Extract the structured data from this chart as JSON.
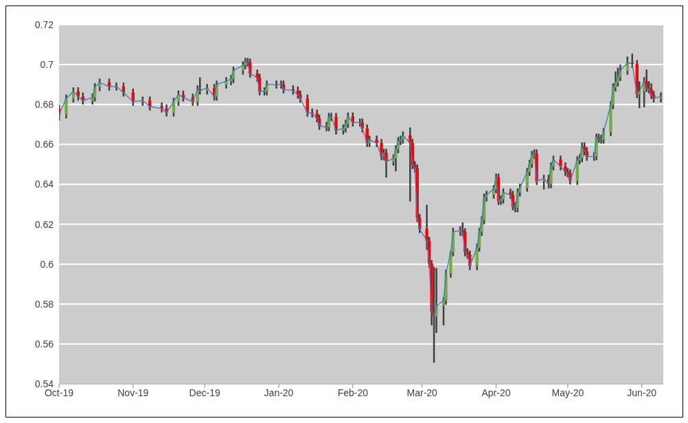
{
  "chart_data": {
    "type": "candlestick",
    "x": [
      "2019-10-01",
      "2019-10-04",
      "2019-10-07",
      "2019-10-09",
      "2019-10-11",
      "2019-10-15",
      "2019-10-16",
      "2019-10-18",
      "2019-10-22",
      "2019-10-25",
      "2019-10-28",
      "2019-11-01",
      "2019-11-05",
      "2019-11-08",
      "2019-11-13",
      "2019-11-15",
      "2019-11-18",
      "2019-11-20",
      "2019-11-22",
      "2019-11-26",
      "2019-11-28",
      "2019-11-29",
      "2019-12-02",
      "2019-12-05",
      "2019-12-06",
      "2019-12-10",
      "2019-12-12",
      "2019-12-13",
      "2019-12-17",
      "2019-12-18",
      "2019-12-19",
      "2019-12-20",
      "2019-12-23",
      "2019-12-24",
      "2019-12-26",
      "2019-12-27",
      "2019-12-31",
      "2020-01-02",
      "2020-01-03",
      "2020-01-07",
      "2020-01-09",
      "2020-01-10",
      "2020-01-13",
      "2020-01-15",
      "2020-01-17",
      "2020-01-18",
      "2020-01-21",
      "2020-01-22",
      "2020-01-23",
      "2020-01-25",
      "2020-01-28",
      "2020-01-29",
      "2020-01-30",
      "2020-02-01",
      "2020-02-04",
      "2020-02-05",
      "2020-02-07",
      "2020-02-08",
      "2020-02-11",
      "2020-02-13",
      "2020-02-14",
      "2020-02-15",
      "2020-02-18",
      "2020-02-19",
      "2020-02-20",
      "2020-02-21",
      "2020-02-22",
      "2020-02-25",
      "2020-02-26",
      "2020-02-27",
      "2020-02-28",
      "2020-02-29",
      "2020-03-03",
      "2020-03-04",
      "2020-03-05",
      "2020-03-06",
      "2020-03-07",
      "2020-03-10",
      "2020-03-11",
      "2020-03-13",
      "2020-03-14",
      "2020-03-17",
      "2020-03-18",
      "2020-03-19",
      "2020-03-20",
      "2020-03-21",
      "2020-03-24",
      "2020-03-25",
      "2020-03-26",
      "2020-03-27",
      "2020-03-28",
      "2020-03-31",
      "2020-04-01",
      "2020-04-02",
      "2020-04-03",
      "2020-04-04",
      "2020-04-07",
      "2020-04-08",
      "2020-04-09",
      "2020-04-10",
      "2020-04-11",
      "2020-04-14",
      "2020-04-15",
      "2020-04-16",
      "2020-04-17",
      "2020-04-18",
      "2020-04-21",
      "2020-04-23",
      "2020-04-24",
      "2020-04-25",
      "2020-04-28",
      "2020-04-30",
      "2020-05-01",
      "2020-05-02",
      "2020-05-05",
      "2020-05-06",
      "2020-05-07",
      "2020-05-08",
      "2020-05-09",
      "2020-05-12",
      "2020-05-13",
      "2020-05-14",
      "2020-05-15",
      "2020-05-16",
      "2020-05-19",
      "2020-05-20",
      "2020-05-21",
      "2020-05-22",
      "2020-05-23",
      "2020-05-26",
      "2020-05-28",
      "2020-05-30",
      "2020-05-31",
      "2020-06-02",
      "2020-06-03",
      "2020-06-04",
      "2020-06-05",
      "2020-06-06",
      "2020-06-09"
    ],
    "ohlc": [
      [
        0.678,
        0.68,
        0.672,
        0.675
      ],
      [
        0.675,
        0.685,
        0.673,
        0.683
      ],
      [
        0.683,
        0.6886,
        0.681,
        0.6866
      ],
      [
        0.6866,
        0.6886,
        0.682,
        0.684
      ],
      [
        0.684,
        0.686,
        0.68,
        0.682
      ],
      [
        0.682,
        0.6855,
        0.68,
        0.6835
      ],
      [
        0.6835,
        0.6907,
        0.6815,
        0.6887
      ],
      [
        0.6887,
        0.693,
        0.6867,
        0.691
      ],
      [
        0.691,
        0.693,
        0.687,
        0.689
      ],
      [
        0.689,
        0.691,
        0.687,
        0.689
      ],
      [
        0.689,
        0.691,
        0.684,
        0.686
      ],
      [
        0.686,
        0.688,
        0.6794,
        0.6814
      ],
      [
        0.6814,
        0.684,
        0.6794,
        0.682
      ],
      [
        0.682,
        0.684,
        0.677,
        0.679
      ],
      [
        0.679,
        0.681,
        0.676,
        0.678
      ],
      [
        0.678,
        0.68,
        0.674,
        0.676
      ],
      [
        0.676,
        0.6834,
        0.674,
        0.6814
      ],
      [
        0.6814,
        0.687,
        0.6794,
        0.685
      ],
      [
        0.685,
        0.687,
        0.6815,
        0.6835
      ],
      [
        0.6835,
        0.6855,
        0.6794,
        0.6814
      ],
      [
        0.6814,
        0.6896,
        0.6794,
        0.6876
      ],
      [
        0.6876,
        0.6936,
        0.685,
        0.687
      ],
      [
        0.687,
        0.6903,
        0.685,
        0.6883
      ],
      [
        0.6883,
        0.6903,
        0.682,
        0.684
      ],
      [
        0.684,
        0.692,
        0.682,
        0.69
      ],
      [
        0.69,
        0.6937,
        0.688,
        0.6917
      ],
      [
        0.6917,
        0.6948,
        0.6897,
        0.6928
      ],
      [
        0.6928,
        0.699,
        0.6908,
        0.697
      ],
      [
        0.697,
        0.7017,
        0.695,
        0.6997
      ],
      [
        0.6997,
        0.7034,
        0.6977,
        0.7014
      ],
      [
        0.7014,
        0.7034,
        0.699,
        0.701
      ],
      [
        0.701,
        0.703,
        0.6935,
        0.6955
      ],
      [
        0.6955,
        0.6975,
        0.6914,
        0.6934
      ],
      [
        0.6934,
        0.6954,
        0.6846,
        0.6866
      ],
      [
        0.6866,
        0.6886,
        0.6846,
        0.6866
      ],
      [
        0.6866,
        0.692,
        0.6846,
        0.69
      ],
      [
        0.69,
        0.692,
        0.688,
        0.69
      ],
      [
        0.69,
        0.692,
        0.688,
        0.69
      ],
      [
        0.69,
        0.692,
        0.6856,
        0.6876
      ],
      [
        0.6876,
        0.6896,
        0.685,
        0.687
      ],
      [
        0.687,
        0.689,
        0.683,
        0.685
      ],
      [
        0.685,
        0.687,
        0.681,
        0.683
      ],
      [
        0.683,
        0.685,
        0.674,
        0.676
      ],
      [
        0.676,
        0.678,
        0.6735,
        0.6755
      ],
      [
        0.6755,
        0.6775,
        0.671,
        0.673
      ],
      [
        0.673,
        0.675,
        0.6673,
        0.6693
      ],
      [
        0.6693,
        0.6713,
        0.6666,
        0.6686
      ],
      [
        0.6686,
        0.6758,
        0.6666,
        0.6738
      ],
      [
        0.6738,
        0.6758,
        0.6718,
        0.6738
      ],
      [
        0.6738,
        0.6758,
        0.665,
        0.667
      ],
      [
        0.667,
        0.67,
        0.665,
        0.668
      ],
      [
        0.668,
        0.6723,
        0.666,
        0.6703
      ],
      [
        0.6703,
        0.676,
        0.6683,
        0.674
      ],
      [
        0.674,
        0.676,
        0.669,
        0.671
      ],
      [
        0.671,
        0.673,
        0.669,
        0.671
      ],
      [
        0.671,
        0.673,
        0.666,
        0.668
      ],
      [
        0.668,
        0.67,
        0.6587,
        0.6607
      ],
      [
        0.6607,
        0.6644,
        0.6587,
        0.6624
      ],
      [
        0.6624,
        0.6644,
        0.6587,
        0.6607
      ],
      [
        0.6607,
        0.6627,
        0.6521,
        0.6541
      ],
      [
        0.6541,
        0.6578,
        0.6521,
        0.6558
      ],
      [
        0.6558,
        0.6578,
        0.6434,
        0.6514
      ],
      [
        0.6514,
        0.655,
        0.6494,
        0.653
      ],
      [
        0.653,
        0.6596,
        0.6465,
        0.6576
      ],
      [
        0.6576,
        0.6637,
        0.6556,
        0.6617
      ],
      [
        0.6617,
        0.6644,
        0.6597,
        0.6624
      ],
      [
        0.6624,
        0.6665,
        0.6604,
        0.6645
      ],
      [
        0.6645,
        0.6685,
        0.6314,
        0.6607
      ],
      [
        0.6607,
        0.6627,
        0.6477,
        0.6497
      ],
      [
        0.6497,
        0.6517,
        0.646,
        0.648
      ],
      [
        0.648,
        0.65,
        0.6211,
        0.6231
      ],
      [
        0.6231,
        0.6251,
        0.6156,
        0.6176
      ],
      [
        0.6176,
        0.6297,
        0.6072,
        0.6117
      ],
      [
        0.6117,
        0.6137,
        0.5983,
        0.6003
      ],
      [
        0.6003,
        0.602,
        0.5693,
        0.5762
      ],
      [
        0.5762,
        0.5986,
        0.5507,
        0.5738
      ],
      [
        0.5738,
        0.598,
        0.5655,
        0.579
      ],
      [
        0.579,
        0.5834,
        0.5693,
        0.5817
      ],
      [
        0.5817,
        0.5972,
        0.5797,
        0.5952
      ],
      [
        0.5952,
        0.6066,
        0.5932,
        0.606
      ],
      [
        0.606,
        0.6182,
        0.604,
        0.6162
      ],
      [
        0.6162,
        0.6189,
        0.6142,
        0.6169
      ],
      [
        0.6169,
        0.6209,
        0.614,
        0.616
      ],
      [
        0.616,
        0.618,
        0.6039,
        0.6059
      ],
      [
        0.6059,
        0.6079,
        0.6028,
        0.6048
      ],
      [
        0.6048,
        0.6068,
        0.597,
        0.599
      ],
      [
        0.599,
        0.6103,
        0.597,
        0.6083
      ],
      [
        0.6083,
        0.6182,
        0.6063,
        0.6162
      ],
      [
        0.6162,
        0.624,
        0.6142,
        0.622
      ],
      [
        0.622,
        0.6354,
        0.62,
        0.6334
      ],
      [
        0.6334,
        0.6368,
        0.6314,
        0.6348
      ],
      [
        0.6348,
        0.6396,
        0.6328,
        0.6376
      ],
      [
        0.6376,
        0.6454,
        0.6356,
        0.6434
      ],
      [
        0.6434,
        0.6454,
        0.6297,
        0.6317
      ],
      [
        0.6317,
        0.6344,
        0.6297,
        0.6324
      ],
      [
        0.6324,
        0.6379,
        0.6304,
        0.6359
      ],
      [
        0.6359,
        0.6379,
        0.6328,
        0.6348
      ],
      [
        0.6348,
        0.6368,
        0.627,
        0.629
      ],
      [
        0.629,
        0.631,
        0.626,
        0.628
      ],
      [
        0.628,
        0.6379,
        0.626,
        0.6359
      ],
      [
        0.6359,
        0.6403,
        0.6339,
        0.6383
      ],
      [
        0.6383,
        0.6482,
        0.6363,
        0.6462
      ],
      [
        0.6462,
        0.6523,
        0.6442,
        0.6503
      ],
      [
        0.6503,
        0.6568,
        0.6483,
        0.6548
      ],
      [
        0.6548,
        0.6575,
        0.6528,
        0.6555
      ],
      [
        0.6555,
        0.6575,
        0.6397,
        0.6417
      ],
      [
        0.6417,
        0.6448,
        0.6374,
        0.6428
      ],
      [
        0.6428,
        0.6448,
        0.638,
        0.64
      ],
      [
        0.64,
        0.651,
        0.638,
        0.649
      ],
      [
        0.649,
        0.6544,
        0.647,
        0.6524
      ],
      [
        0.6524,
        0.6544,
        0.647,
        0.649
      ],
      [
        0.649,
        0.651,
        0.6442,
        0.6462
      ],
      [
        0.6462,
        0.6482,
        0.6435,
        0.6455
      ],
      [
        0.6455,
        0.6475,
        0.64,
        0.6417
      ],
      [
        0.6417,
        0.6541,
        0.6397,
        0.6521
      ],
      [
        0.6521,
        0.6551,
        0.6501,
        0.6531
      ],
      [
        0.6531,
        0.661,
        0.6511,
        0.659
      ],
      [
        0.659,
        0.661,
        0.6546,
        0.6566
      ],
      [
        0.6566,
        0.6586,
        0.6518,
        0.6538
      ],
      [
        0.6538,
        0.6561,
        0.6518,
        0.6541
      ],
      [
        0.6541,
        0.6654,
        0.6521,
        0.6634
      ],
      [
        0.6634,
        0.6654,
        0.6608,
        0.6628
      ],
      [
        0.6628,
        0.6648,
        0.6604,
        0.6624
      ],
      [
        0.6624,
        0.6682,
        0.6604,
        0.6662
      ],
      [
        0.6662,
        0.6817,
        0.6642,
        0.6797
      ],
      [
        0.6797,
        0.6906,
        0.6777,
        0.6886
      ],
      [
        0.6886,
        0.6966,
        0.6866,
        0.691
      ],
      [
        0.691,
        0.6985,
        0.689,
        0.6938
      ],
      [
        0.6938,
        0.7,
        0.6918,
        0.6969
      ],
      [
        0.6969,
        0.704,
        0.6949,
        0.701
      ],
      [
        0.701,
        0.7055,
        0.6983,
        0.7003
      ],
      [
        0.7003,
        0.7023,
        0.6832,
        0.6852
      ],
      [
        0.6852,
        0.6916,
        0.6782,
        0.6866
      ],
      [
        0.6866,
        0.6937,
        0.6786,
        0.6917
      ],
      [
        0.6917,
        0.6975,
        0.6863,
        0.6883
      ],
      [
        0.6883,
        0.6917,
        0.6856,
        0.6876
      ],
      [
        0.6876,
        0.6906,
        0.6828,
        0.6848
      ],
      [
        0.6848,
        0.6868,
        0.6811,
        0.6831
      ],
      [
        0.6831,
        0.6861,
        0.6811,
        0.6841
      ]
    ],
    "series": [
      {
        "type": "line",
        "color": "#4472c4",
        "values": [
          0.675,
          0.683,
          0.6866,
          0.684,
          0.682,
          0.6835,
          0.6887,
          0.691,
          0.689,
          0.689,
          0.686,
          0.6814,
          0.682,
          0.679,
          0.678,
          0.676,
          0.6814,
          0.685,
          0.6835,
          0.6814,
          0.6876,
          0.687,
          0.6883,
          0.684,
          0.69,
          0.6917,
          0.6928,
          0.697,
          0.6997,
          0.7014,
          0.701,
          0.6955,
          0.6934,
          0.6866,
          0.6866,
          0.69,
          0.69,
          0.69,
          0.6876,
          0.687,
          0.685,
          0.683,
          0.676,
          0.6755,
          0.673,
          0.6693,
          0.6686,
          0.6738,
          0.6738,
          0.667,
          0.668,
          0.6703,
          0.674,
          0.671,
          0.671,
          0.668,
          0.6607,
          0.6624,
          0.6607,
          0.6541,
          0.6558,
          0.6514,
          0.653,
          0.6576,
          0.6617,
          0.6624,
          0.6645,
          0.6607,
          0.6497,
          0.648,
          0.6231,
          0.6176,
          0.6117,
          0.6003,
          0.5762,
          0.5738,
          0.579,
          0.5817,
          0.5952,
          0.606,
          0.6162,
          0.6169,
          0.616,
          0.6059,
          0.6048,
          0.599,
          0.6083,
          0.6162,
          0.622,
          0.6334,
          0.6348,
          0.6376,
          0.6434,
          0.6317,
          0.6324,
          0.6359,
          0.6348,
          0.629,
          0.628,
          0.6359,
          0.6383,
          0.6462,
          0.6503,
          0.6548,
          0.6555,
          0.6417,
          0.6428,
          0.64,
          0.649,
          0.6524,
          0.649,
          0.6462,
          0.6455,
          0.6417,
          0.6521,
          0.6531,
          0.659,
          0.6566,
          0.6538,
          0.6541,
          0.6634,
          0.6628,
          0.6624,
          0.6662,
          0.6797,
          0.6886,
          0.691,
          0.6938,
          0.6969,
          0.701,
          0.7003,
          0.6852,
          0.6866,
          0.6917,
          0.6883,
          0.6876,
          0.6848,
          0.6831,
          0.6841
        ]
      }
    ],
    "xlim": [
      "2019-10-01",
      "2020-06-10"
    ],
    "xticks": [
      {
        "value": "2019-10-01",
        "label": "Oct-19"
      },
      {
        "value": "2019-11-01",
        "label": "Nov-19"
      },
      {
        "value": "2019-12-01",
        "label": "Dec-19"
      },
      {
        "value": "2020-01-01",
        "label": "Jan-20"
      },
      {
        "value": "2020-02-01",
        "label": "Feb-20"
      },
      {
        "value": "2020-03-01",
        "label": "Mar-20"
      },
      {
        "value": "2020-04-01",
        "label": "Apr-20"
      },
      {
        "value": "2020-05-01",
        "label": "May-20"
      },
      {
        "value": "2020-06-01",
        "label": "Jun-20"
      }
    ],
    "ylim": [
      0.54,
      0.72
    ],
    "yticks": [
      0.54,
      0.56,
      0.58,
      0.6,
      0.62,
      0.64,
      0.66,
      0.68,
      0.7,
      0.72
    ],
    "grid": "y"
  }
}
